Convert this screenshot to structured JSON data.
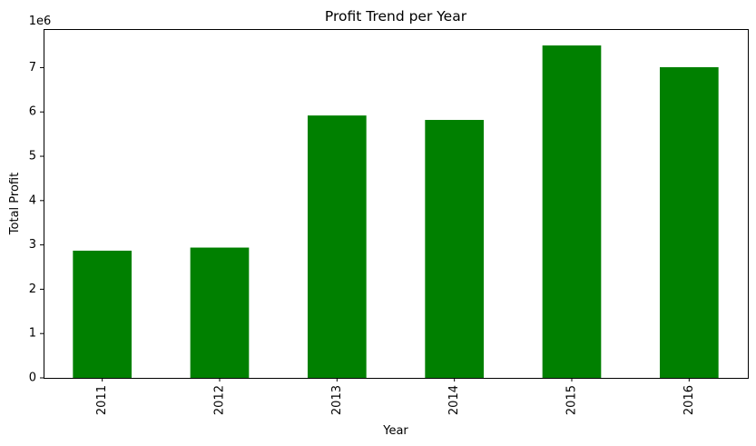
{
  "chart_data": {
    "type": "bar",
    "title": "Profit Trend per Year",
    "xlabel": "Year",
    "ylabel": "Total Profit",
    "offset_label": "1e6",
    "categories": [
      "2011",
      "2012",
      "2013",
      "2014",
      "2015",
      "2016"
    ],
    "values": [
      2870000,
      2940000,
      5920000,
      5820000,
      7500000,
      7010000
    ],
    "ylim": [
      0,
      7870000
    ],
    "yticks": [
      0,
      1,
      2,
      3,
      4,
      5,
      6,
      7
    ],
    "ytick_multiplier": 1000000,
    "bar_color": "#008000",
    "grid": false,
    "legend": false
  }
}
